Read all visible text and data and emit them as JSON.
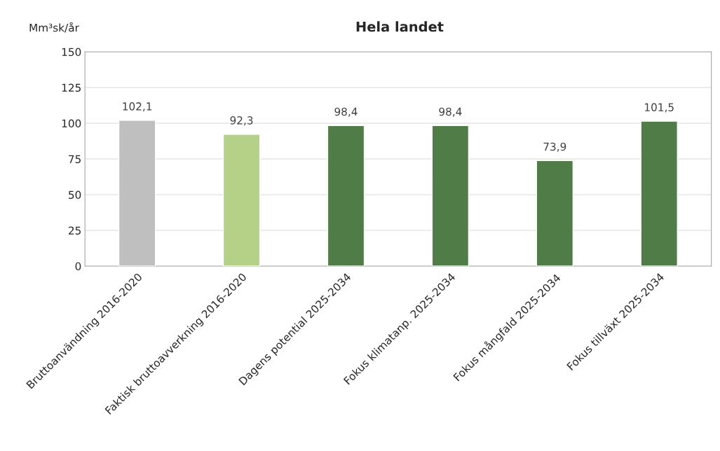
{
  "chart_data": {
    "type": "bar",
    "title": "Hela landet",
    "ylabel": "Mm³sk/år",
    "categories": [
      "Bruttoanvändning 2016-2020",
      "Faktisk bruttoavverkning 2016-2020",
      "Dagens potential 2025-2034",
      "Fokus klimatanp. 2025-2034",
      "Fokus mångfald 2025-2034",
      "Fokus tillväxt 2025-2034"
    ],
    "values": [
      102.1,
      92.3,
      98.4,
      98.4,
      73.9,
      101.5
    ],
    "value_labels": [
      "102,1",
      "92,3",
      "98,4",
      "98,4",
      "73,9",
      "101,5"
    ],
    "colors": [
      "#bfbfbf",
      "#b5d087",
      "#507c47",
      "#507c47",
      "#507c47",
      "#507c47"
    ],
    "ylim": [
      0,
      150
    ],
    "yticks": [
      0,
      25,
      50,
      75,
      100,
      125,
      150
    ],
    "grid": "y",
    "legend": false
  }
}
